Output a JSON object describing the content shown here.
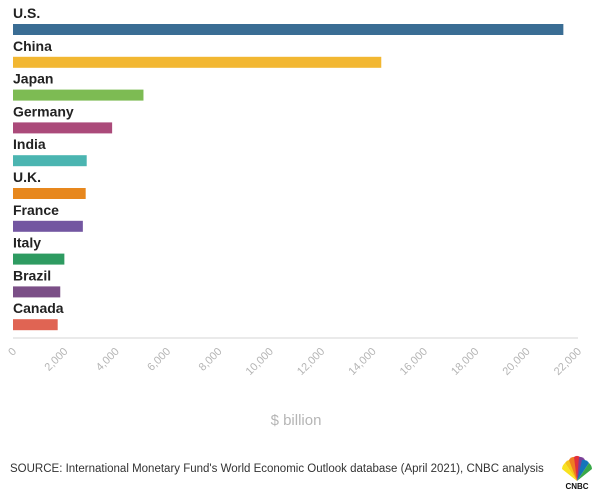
{
  "chart_data": {
    "type": "bar",
    "orientation": "horizontal",
    "categories": [
      "U.S.",
      "China",
      "Japan",
      "Germany",
      "India",
      "U.K.",
      "France",
      "Italy",
      "Brazil",
      "Canada"
    ],
    "values": [
      21430,
      14340,
      5080,
      3860,
      2870,
      2830,
      2720,
      2000,
      1840,
      1740
    ],
    "colors": [
      "#3a6d94",
      "#f2b732",
      "#7dbb53",
      "#ab4a7a",
      "#4bb5b1",
      "#e7871d",
      "#7356a1",
      "#2e9b61",
      "#7b4f87",
      "#e06453"
    ],
    "title": "",
    "xlabel": "$ billion",
    "ylabel": "",
    "xlim": [
      0,
      22000
    ],
    "ticks": [
      0,
      2000,
      4000,
      6000,
      8000,
      10000,
      12000,
      14000,
      16000,
      18000,
      20000,
      22000
    ],
    "tick_labels": [
      "0",
      "2,000",
      "4,000",
      "6,000",
      "8,000",
      "10,000",
      "12,000",
      "14,000",
      "16,000",
      "18,000",
      "20,000",
      "22,000"
    ],
    "grid": false,
    "legend": "none"
  },
  "footer": {
    "source": "SOURCE: International Monetary Fund's World Economic Outlook database (April 2021), CNBC analysis",
    "logo_text": "CNBC",
    "logo_icon": "peacock-icon"
  }
}
